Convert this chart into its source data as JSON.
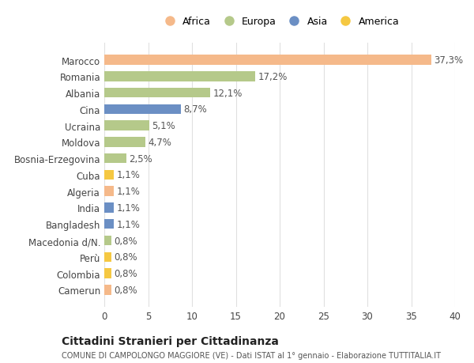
{
  "categories": [
    "Camerun",
    "Colombia",
    "Perù",
    "Macedonia d/N.",
    "Bangladesh",
    "India",
    "Algeria",
    "Cuba",
    "Bosnia-Erzegovina",
    "Moldova",
    "Ucraina",
    "Cina",
    "Albania",
    "Romania",
    "Marocco"
  ],
  "values": [
    0.8,
    0.8,
    0.8,
    0.8,
    1.1,
    1.1,
    1.1,
    1.1,
    2.5,
    4.7,
    5.1,
    8.7,
    12.1,
    17.2,
    37.3
  ],
  "labels": [
    "0,8%",
    "0,8%",
    "0,8%",
    "0,8%",
    "1,1%",
    "1,1%",
    "1,1%",
    "1,1%",
    "2,5%",
    "4,7%",
    "5,1%",
    "8,7%",
    "12,1%",
    "17,2%",
    "37,3%"
  ],
  "continent": [
    "Africa",
    "America",
    "America",
    "Europa",
    "Asia",
    "Asia",
    "Africa",
    "America",
    "Europa",
    "Europa",
    "Europa",
    "Asia",
    "Europa",
    "Europa",
    "Africa"
  ],
  "legend_labels": [
    "Africa",
    "Europa",
    "Asia",
    "America"
  ],
  "legend_colors": [
    "#f5b98a",
    "#b5c98a",
    "#6b8fc4",
    "#f5c842"
  ],
  "title": "Cittadini Stranieri per Cittadinanza",
  "subtitle": "COMUNE DI CAMPOLONGO MAGGIORE (VE) - Dati ISTAT al 1° gennaio - Elaborazione TUTTITALIA.IT",
  "xlim": [
    0,
    40
  ],
  "xticks": [
    0,
    5,
    10,
    15,
    20,
    25,
    30,
    35,
    40
  ],
  "bar_height": 0.6,
  "background_color": "#ffffff",
  "grid_color": "#e0e0e0",
  "label_fontsize": 8.5,
  "tick_fontsize": 8.5
}
